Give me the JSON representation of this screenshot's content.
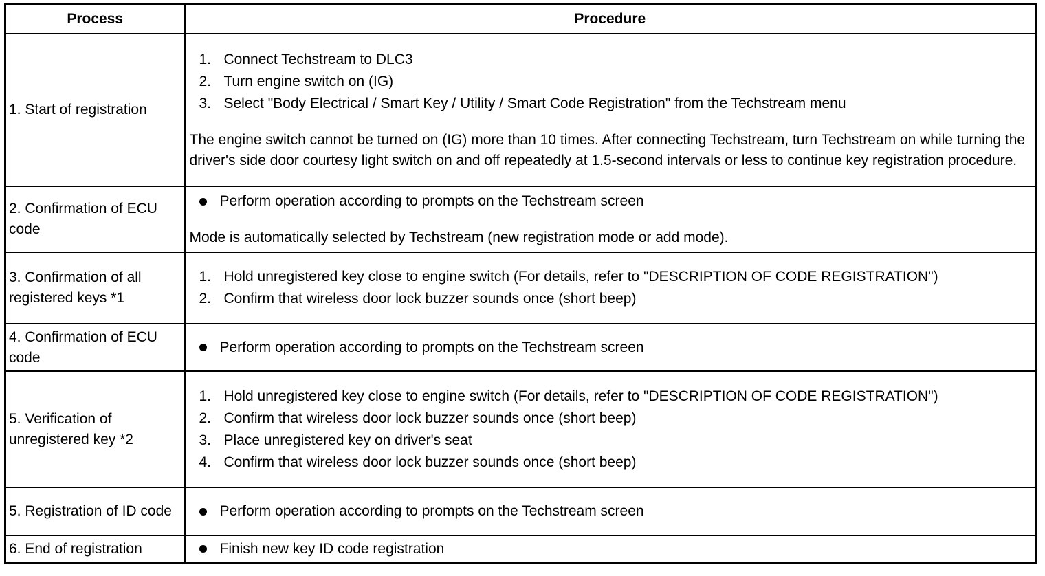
{
  "header": {
    "process": "Process",
    "procedure": "Procedure"
  },
  "rows": [
    {
      "process": "1. Start of registration",
      "items": [
        {
          "type": "num",
          "marker": "1.",
          "text": "Connect Techstream to DLC3"
        },
        {
          "type": "num",
          "marker": "2.",
          "text": "Turn engine switch on (IG)"
        },
        {
          "type": "num",
          "marker": "3.",
          "text": "Select \"Body Electrical / Smart Key / Utility / Smart Code Registration\" from the Techstream menu"
        }
      ],
      "note": "The engine switch cannot be turned on (IG) more than 10 times. After connecting Techstream, turn Techstream on while turning the driver's side door courtesy light switch on and off repeatedly at 1.5-second intervals or less to continue key registration procedure."
    },
    {
      "process": "2. Confirmation of ECU code",
      "items": [
        {
          "type": "bullet",
          "text": "Perform operation according to prompts on the Techstream screen"
        }
      ],
      "note": "Mode is automatically selected by Techstream (new registration mode or add mode)."
    },
    {
      "process": "3. Confirmation of all registered keys *1",
      "items": [
        {
          "type": "num",
          "marker": "1.",
          "text": "Hold unregistered key close to engine switch (For details, refer to \"DESCRIPTION OF CODE REGISTRATION\")"
        },
        {
          "type": "num",
          "marker": "2.",
          "text": "Confirm that wireless door lock buzzer sounds once (short beep)"
        }
      ]
    },
    {
      "process": "4. Confirmation of ECU code",
      "items": [
        {
          "type": "bullet",
          "text": "Perform operation according to prompts on the Techstream screen"
        }
      ]
    },
    {
      "process": "5. Verification of unregistered key *2",
      "items": [
        {
          "type": "num",
          "marker": "1.",
          "text": "Hold unregistered key close to engine switch (For details, refer to \"DESCRIPTION OF CODE REGISTRATION\")"
        },
        {
          "type": "num",
          "marker": "2.",
          "text": "Confirm that wireless door lock buzzer sounds once (short beep)"
        },
        {
          "type": "num",
          "marker": "3.",
          "text": "Place unregistered key on driver's seat"
        },
        {
          "type": "num",
          "marker": "4.",
          "text": "Confirm that wireless door lock buzzer sounds once (short beep)"
        }
      ]
    },
    {
      "process": "5. Registration of ID code",
      "items": [
        {
          "type": "bullet",
          "text": "Perform operation according to prompts on the Techstream screen"
        }
      ]
    },
    {
      "process": "6. End of registration",
      "items": [
        {
          "type": "bullet",
          "text": "Finish new key ID code registration"
        }
      ]
    }
  ]
}
